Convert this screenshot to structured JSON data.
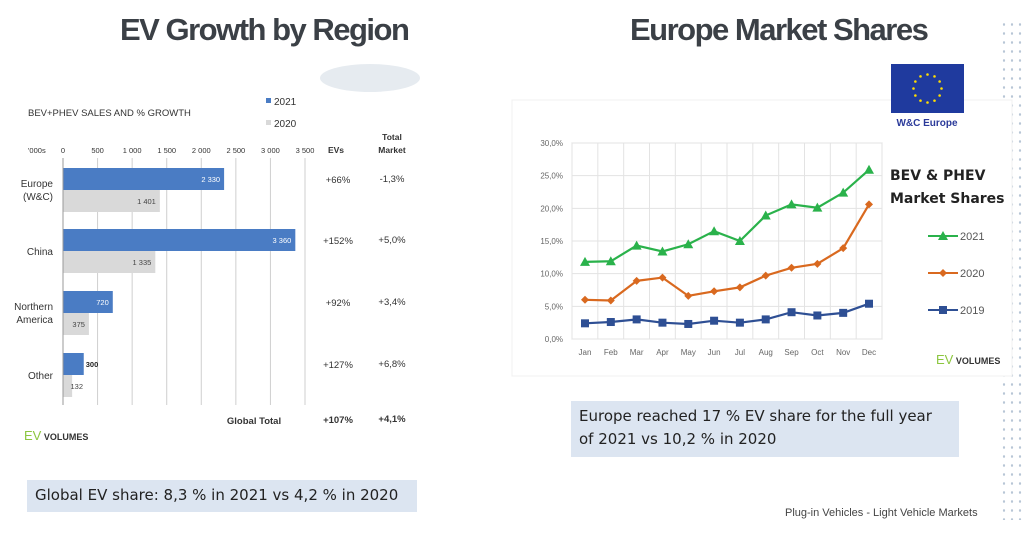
{
  "left": {
    "title": "EV Growth by Region",
    "callout": "Global EV share: 8,3 % in 2021 vs 4,2 % in 2020",
    "logo": "EV VOLUMES"
  },
  "right": {
    "title": "Europe Market Shares",
    "flag_label": "W&C Europe",
    "callout": "Europe reached 17 % EV share for the full year of 2021 vs 10,2 % in 2020",
    "logo": "EV VOLUMES"
  },
  "footer": "Plug-in Vehicles - Light Vehicle Markets",
  "chart_data": [
    {
      "type": "bar",
      "orientation": "horizontal",
      "title": "BEV+PHEV SALES AND % GROWTH",
      "unit_label": "'000s",
      "categories": [
        [
          "Europe",
          "(W&C)"
        ],
        [
          "China"
        ],
        [
          "Northern",
          "America"
        ],
        [
          "Other"
        ]
      ],
      "xlim": [
        0,
        3500
      ],
      "xticks": [
        0,
        500,
        1000,
        1500,
        2000,
        2500,
        3000,
        3500
      ],
      "xtick_labels": [
        "0",
        "500",
        "1 000",
        "1 500",
        "2 000",
        "2 500",
        "3 000",
        "3 500"
      ],
      "series": [
        {
          "name": "2021",
          "color": "#4a7cc4",
          "values": [
            2330,
            3360,
            720,
            300
          ],
          "labels": [
            "2 330",
            "3 360",
            "720",
            "300"
          ]
        },
        {
          "name": "2020",
          "color": "#d9d9d9",
          "values": [
            1401,
            1335,
            375,
            132
          ],
          "labels": [
            "1 401",
            "1 335",
            "375",
            "132"
          ]
        }
      ],
      "table": {
        "headers": [
          "EVs",
          "Total Market"
        ],
        "rows": [
          [
            "+66%",
            "-1,3%"
          ],
          [
            "+152%",
            "+5,0%"
          ],
          [
            "+92%",
            "+3,4%"
          ],
          [
            "+127%",
            "+6,8%"
          ]
        ],
        "total_label": "Global Total",
        "total": [
          "+107%",
          "+4,1%"
        ]
      },
      "legend": "top-right",
      "grid": true
    },
    {
      "type": "line",
      "title": "BEV & PHEV Market Shares",
      "categories": [
        "Jan",
        "Feb",
        "Mar",
        "Apr",
        "May",
        "Jun",
        "Jul",
        "Aug",
        "Sep",
        "Oct",
        "Nov",
        "Dec"
      ],
      "ylim": [
        0,
        30
      ],
      "yticks": [
        0,
        5,
        10,
        15,
        20,
        25,
        30
      ],
      "ytick_labels": [
        "0,0%",
        "5,0%",
        "10,0%",
        "15,0%",
        "20,0%",
        "25,0%",
        "30,0%"
      ],
      "series": [
        {
          "name": "2021",
          "color": "#2ab24b",
          "marker": "triangle",
          "values": [
            11.8,
            11.9,
            14.3,
            13.4,
            14.5,
            16.5,
            15.0,
            18.9,
            20.6,
            20.1,
            22.4,
            25.9
          ]
        },
        {
          "name": "2020",
          "color": "#d9691f",
          "marker": "diamond",
          "values": [
            6.0,
            5.9,
            8.9,
            9.4,
            6.6,
            7.3,
            7.9,
            9.7,
            10.9,
            11.5,
            13.9,
            20.6
          ]
        },
        {
          "name": "2019",
          "color": "#2e4f94",
          "marker": "square",
          "values": [
            2.4,
            2.6,
            3.0,
            2.5,
            2.3,
            2.8,
            2.5,
            3.0,
            4.1,
            3.6,
            4.0,
            5.4
          ]
        }
      ],
      "legend": "right",
      "grid": true
    }
  ]
}
